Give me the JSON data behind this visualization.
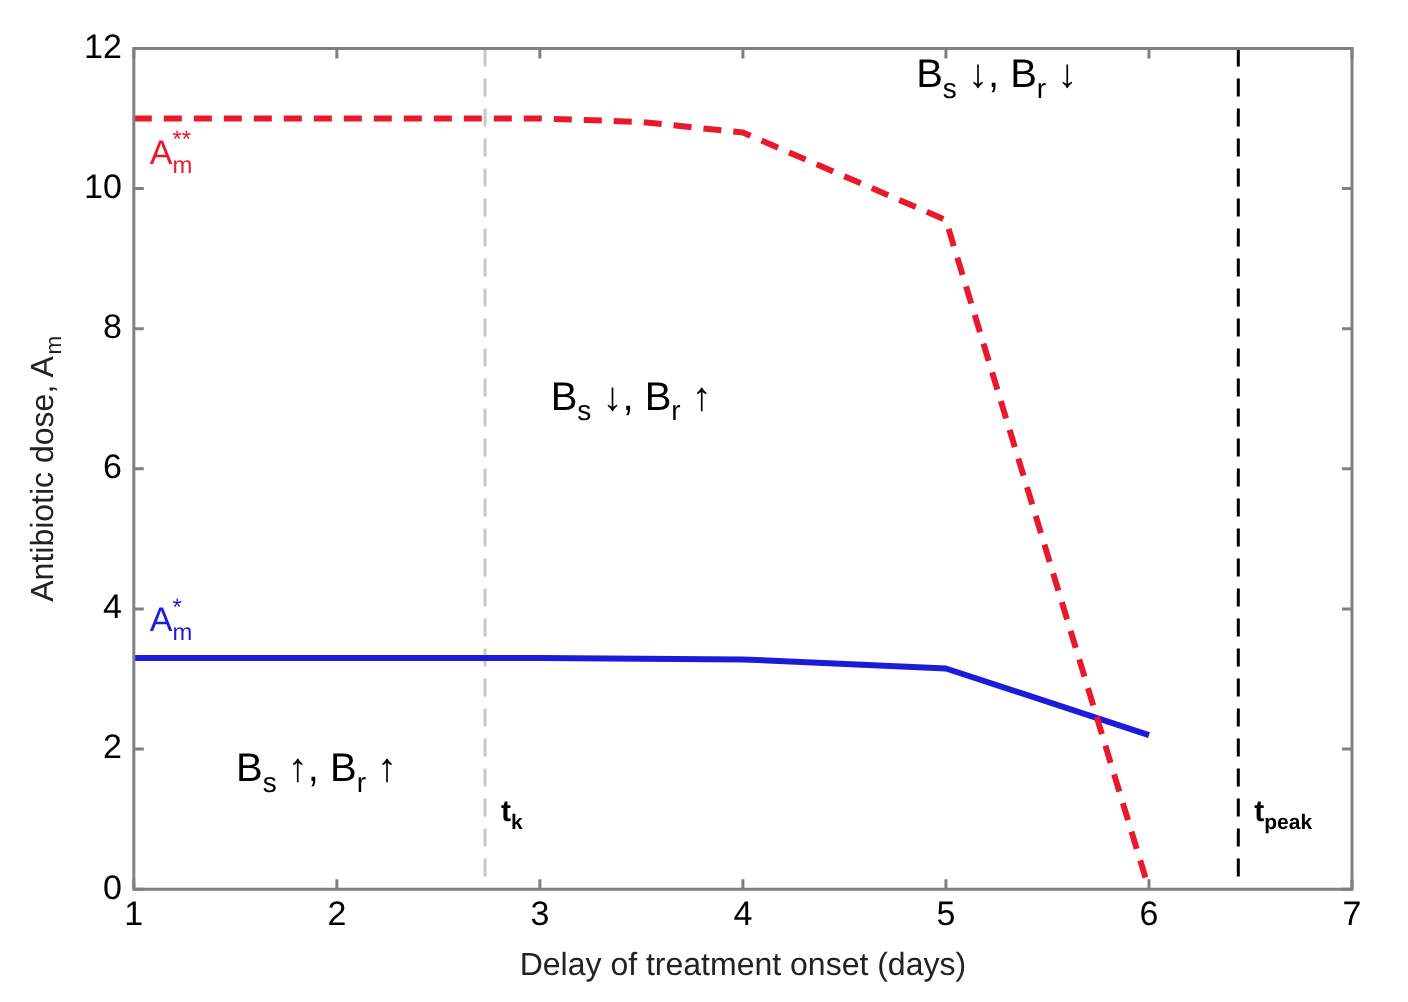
{
  "chart_data": {
    "type": "line",
    "xlabel": "Delay of treatment onset (days)",
    "ylabel": "Antibiotic dose, A$_{m}$",
    "x": [
      1,
      2,
      3,
      4,
      5,
      6
    ],
    "series": [
      {
        "name": "A$_{m}$$^{**}$",
        "color": "#e8192c",
        "line_style": "dashed",
        "x": [
          1,
          2,
          3,
          3.5,
          4,
          5,
          6
        ],
        "values": [
          11,
          11,
          11,
          10.95,
          10.8,
          9.55,
          0
        ]
      },
      {
        "name": "A$_{m}$$^{*}$",
        "color": "#1c1cd8",
        "line_style": "solid",
        "values": [
          3.3,
          3.3,
          3.3,
          3.28,
          3.15,
          2.2
        ]
      }
    ],
    "xlim": [
      1,
      7
    ],
    "xticks": [
      1,
      2,
      3,
      4,
      5,
      6,
      7
    ],
    "ylim": [
      0,
      12
    ],
    "yticks": [
      0,
      2,
      4,
      6,
      8,
      10,
      12
    ],
    "ref_lines": [
      {
        "axis": "x",
        "value": 2.73,
        "label": "t$_{k}$",
        "color": "#c8c8c8",
        "line_style": "dashed"
      },
      {
        "axis": "x",
        "value": 6.44,
        "label": "t$_{peak}$",
        "color": "#000000",
        "line_style": "dashed"
      }
    ],
    "annotations": [
      "B$_{s}$ ↑, B$_{r}$ ↑",
      "B$_{s}$ ↓, B$_{r}$ ↑",
      "B$_{s}$ ↓, B$_{r}$ ↓"
    ],
    "grid": false,
    "legend": false,
    "marker": "none"
  }
}
